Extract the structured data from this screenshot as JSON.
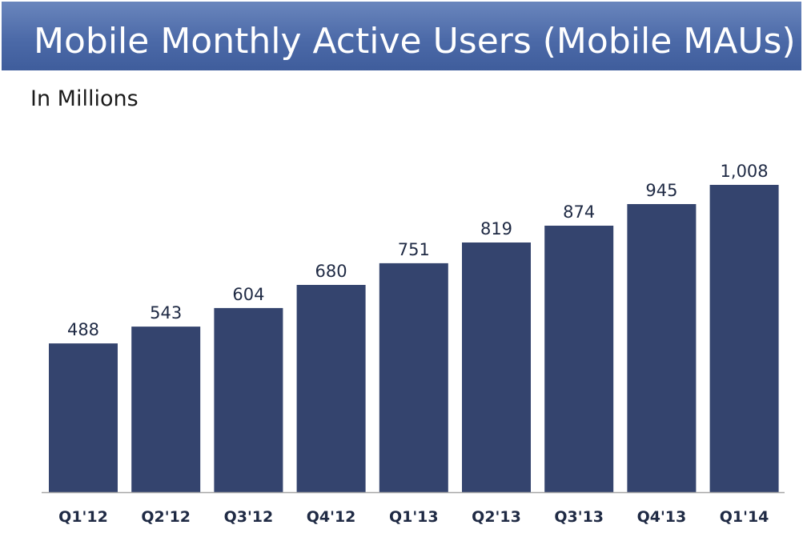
{
  "title": "Mobile Monthly Active Users (Mobile MAUs)",
  "subtitle": "In Millions",
  "colors": {
    "bar": "#34446e",
    "header": "#4c6aa8",
    "axis": "#a6a6a6"
  },
  "chart_data": {
    "type": "bar",
    "categories": [
      "Q1'12",
      "Q2'12",
      "Q3'12",
      "Q4'12",
      "Q1'13",
      "Q2'13",
      "Q3'13",
      "Q4'13",
      "Q1'14"
    ],
    "values": [
      488,
      543,
      604,
      680,
      751,
      819,
      874,
      945,
      1008
    ],
    "value_labels": [
      "488",
      "543",
      "604",
      "680",
      "751",
      "819",
      "874",
      "945",
      "1,008"
    ],
    "title": "Mobile Monthly Active Users (Mobile MAUs)",
    "subtitle": "In Millions",
    "xlabel": "",
    "ylabel": "",
    "ylim": [
      0,
      1008
    ],
    "grid": false,
    "legend": "none"
  }
}
